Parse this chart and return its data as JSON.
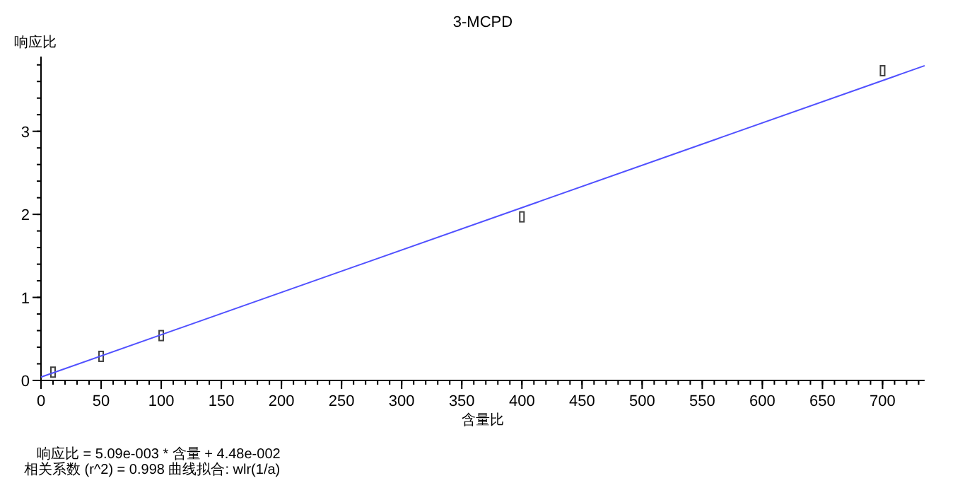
{
  "chart_data": {
    "type": "scatter",
    "title": "3-MCPD",
    "xlabel": "含量比",
    "ylabel": "响应比",
    "xlim": [
      0,
      735
    ],
    "ylim": [
      0,
      3.9
    ],
    "xticks": [
      0,
      50,
      100,
      150,
      200,
      250,
      300,
      350,
      400,
      450,
      500,
      550,
      600,
      650,
      700
    ],
    "yticks": [
      0,
      1,
      2,
      3
    ],
    "grid": false,
    "series": [
      {
        "marker": "square",
        "color": "#404040",
        "x": [
          10,
          50,
          100,
          400,
          700
        ],
        "values": [
          0.1,
          0.29,
          0.54,
          1.97,
          3.73
        ]
      },
      {
        "type": "line",
        "color": "#5050ff",
        "line_style": "solid",
        "x": [
          0,
          735
        ],
        "values": [
          0.04,
          3.79
        ]
      }
    ],
    "annotations": [
      "响应比 = 5.09e-003 * 含量 + 4.48e-002",
      "相关系数 (r^2) = 0.998   曲线拟合: wlr(1/a)"
    ]
  }
}
